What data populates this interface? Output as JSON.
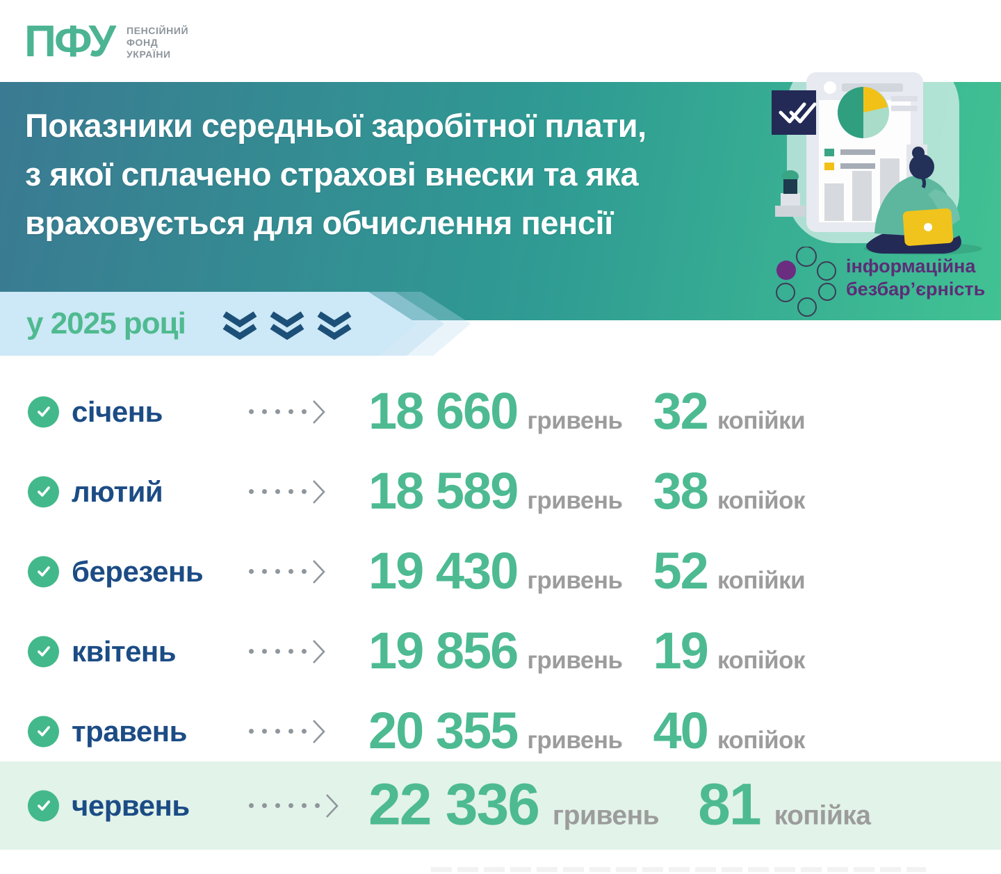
{
  "logo": {
    "acronym": "ПФУ",
    "org_lines": [
      "ПЕНСІЙНИЙ",
      "ФОНД",
      "УКРАЇНИ"
    ]
  },
  "header": {
    "title_lines": [
      "Показники середньої заробітної плати,",
      "з якої сплачено страхові внески та яка",
      "враховується для обчислення пенсії"
    ],
    "gradient_from": "#3a7a92",
    "gradient_to": "#41c293"
  },
  "accessibility_badge": {
    "line1": "інформаційна",
    "line2": "безбар’єрність",
    "text_color": "#5c2d77",
    "circle_fill_color": "#6a2d80"
  },
  "year_banner": {
    "label": "у 2025 році",
    "text_color": "#4fba90",
    "bg_color": "#cde8f6",
    "chevron_color": "#1d5078",
    "chevron_count": 3
  },
  "rows": [
    {
      "month": "січень",
      "uah": "18 660",
      "uah_label": "гривень",
      "kop": "32",
      "kop_label": "копійки",
      "highlight": false
    },
    {
      "month": "лютий",
      "uah": "18 589",
      "uah_label": "гривень",
      "kop": "38",
      "kop_label": "копійок",
      "highlight": false
    },
    {
      "month": "березень",
      "uah": "19 430",
      "uah_label": "гривень",
      "kop": "52",
      "kop_label": "копійки",
      "highlight": false
    },
    {
      "month": "квітень",
      "uah": "19 856",
      "uah_label": "гривень",
      "kop": "19",
      "kop_label": "копійок",
      "highlight": false
    },
    {
      "month": "травень",
      "uah": "20 355",
      "uah_label": "гривень",
      "kop": "40",
      "kop_label": "копійок",
      "highlight": false
    },
    {
      "month": "червень",
      "uah": "22 336",
      "uah_label": "гривень",
      "kop": "81",
      "kop_label": "копійка",
      "highlight": true
    }
  ],
  "colors": {
    "number_green": "#4dba92",
    "label_gray": "#9c9c9c",
    "month_blue": "#1c4c85",
    "check_green": "#43b98b",
    "highlight_row_bg": "#e2f3e9",
    "logo_green": "#4cb492"
  }
}
